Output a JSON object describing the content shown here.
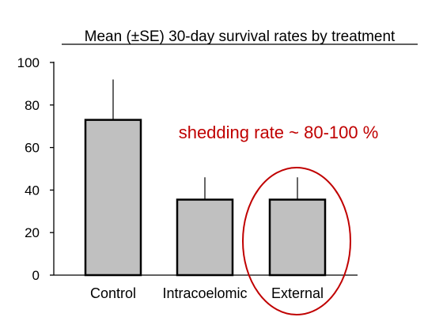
{
  "chart_data": {
    "type": "bar",
    "title": "Mean (±SE) 30-day survival rates by treatment",
    "xlabel": "",
    "ylabel": "",
    "categories": [
      "Control",
      "Intracoelomic",
      "External"
    ],
    "values": [
      73,
      35.5,
      35.5
    ],
    "error_upper": [
      92,
      46,
      46
    ],
    "ylim": [
      0,
      100
    ],
    "yticks": [
      0,
      20,
      40,
      60,
      80,
      100
    ],
    "grid": false,
    "bar_color": "#c0c0c0",
    "annotation": {
      "text": "shedding rate ~ 80-100 %",
      "color": "#c00000",
      "highlight_category": "External"
    }
  }
}
